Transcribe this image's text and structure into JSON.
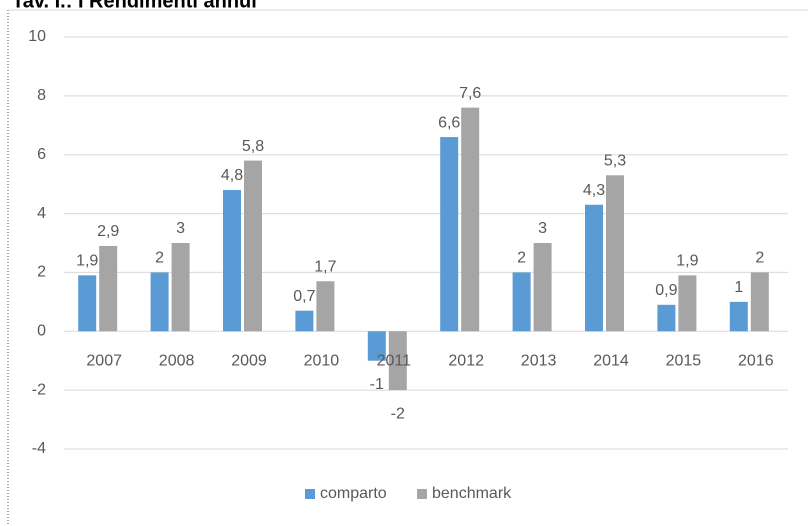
{
  "chart_data": {
    "type": "bar",
    "title": "Tav. I.: I Rendimenti annui",
    "categories": [
      "2007",
      "2008",
      "2009",
      "2010",
      "2011",
      "2012",
      "2013",
      "2014",
      "2015",
      "2016"
    ],
    "series": [
      {
        "name": "comparto",
        "color": "#5b9bd5",
        "values": [
          1.9,
          2,
          4.8,
          0.7,
          -1,
          6.6,
          2,
          4.3,
          0.9,
          1
        ],
        "value_labels": [
          "1,9",
          "2",
          "4,8",
          "0,7",
          "-1",
          "6,6",
          "2",
          "4,3",
          "0,9",
          "1"
        ]
      },
      {
        "name": "benchmark",
        "color": "#a5a5a5",
        "values": [
          2.9,
          3,
          5.8,
          1.7,
          -2,
          7.6,
          3,
          5.3,
          1.9,
          2
        ],
        "value_labels": [
          "2,9",
          "3",
          "5,8",
          "1,7",
          "-2",
          "7,6",
          "3",
          "5,3",
          "1,9",
          "2"
        ]
      }
    ],
    "ylim": [
      -4,
      10
    ],
    "yticks": [
      -4,
      -2,
      0,
      2,
      4,
      6,
      8,
      10
    ],
    "grid": true,
    "legend": "bottom"
  }
}
